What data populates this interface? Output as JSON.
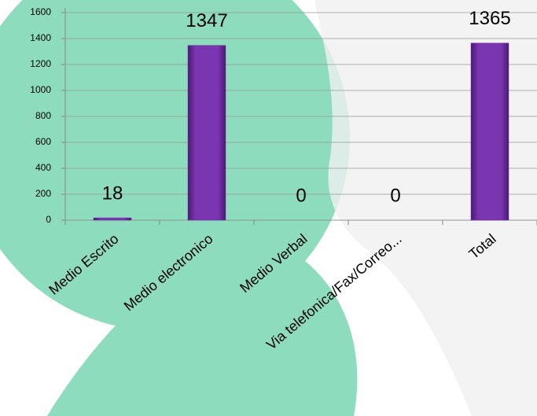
{
  "chart_data": {
    "type": "bar",
    "categories": [
      "Medio Escrito",
      "Medio electronico",
      "Medio Verbal",
      "Via telefonica/Fax/Correo...",
      "Total"
    ],
    "values": [
      18,
      1347,
      0,
      0,
      1365
    ],
    "color": "#7030a0",
    "ylim": [
      0,
      1600
    ],
    "yticks": [
      0,
      200,
      400,
      600,
      800,
      1000,
      1200,
      1400,
      1600
    ],
    "grid": true
  }
}
